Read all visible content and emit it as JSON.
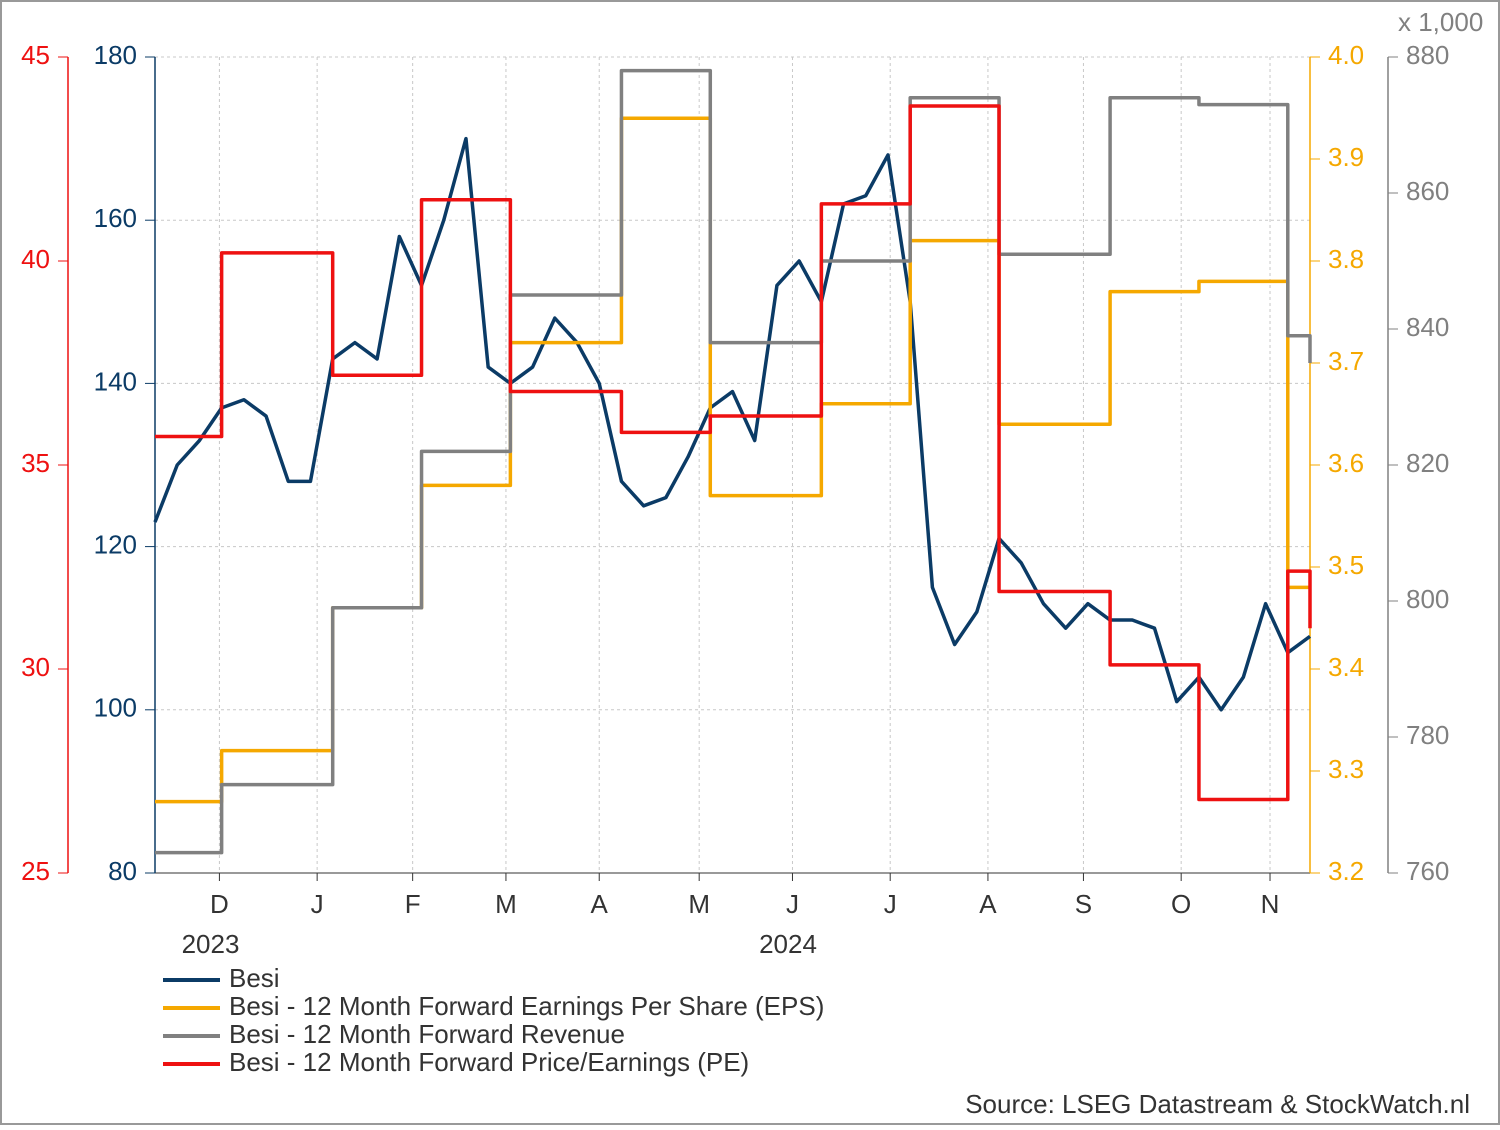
{
  "chart_data": {
    "type": "line",
    "x": [
      0,
      1,
      2,
      3,
      4,
      5,
      6,
      7,
      8,
      9,
      10,
      11,
      12,
      13,
      14,
      15,
      16,
      17,
      18,
      19,
      20,
      21,
      22,
      23,
      24,
      25,
      26,
      27,
      28,
      29,
      30,
      31,
      32,
      33,
      34,
      35,
      36,
      37,
      38,
      39,
      40,
      41,
      42,
      43,
      44,
      45,
      46,
      47,
      48,
      49,
      50,
      51,
      52
    ],
    "xlim": [
      0,
      52
    ],
    "xticks": [
      {
        "value": 2.9,
        "label": "D"
      },
      {
        "value": 7.3,
        "label": "J"
      },
      {
        "value": 11.6,
        "label": "F"
      },
      {
        "value": 15.8,
        "label": "M"
      },
      {
        "value": 20.0,
        "label": "A"
      },
      {
        "value": 24.5,
        "label": "M"
      },
      {
        "value": 28.7,
        "label": "J"
      },
      {
        "value": 33.1,
        "label": "J"
      },
      {
        "value": 37.5,
        "label": "A"
      },
      {
        "value": 41.8,
        "label": "S"
      },
      {
        "value": 46.2,
        "label": "O"
      },
      {
        "value": 50.2,
        "label": "N"
      }
    ],
    "x_groups": [
      {
        "value": 2.5,
        "label": "2023"
      },
      {
        "value": 28.5,
        "label": "2024"
      }
    ],
    "ylim": [
      80,
      180
    ],
    "yticks": [
      80,
      100,
      120,
      140,
      160,
      180
    ],
    "y2lim": [
      3.2,
      4.0
    ],
    "y2ticks": [
      3.2,
      3.3,
      3.4,
      3.5,
      3.6,
      3.7,
      3.8,
      3.9,
      {
        "value": 4.0,
        "label": "4.0"
      }
    ],
    "y3lim": [
      760,
      880
    ],
    "y3ticks": [
      760,
      780,
      800,
      820,
      840,
      860,
      880
    ],
    "y3_unit": "x 1,000",
    "y4lim": [
      25,
      45
    ],
    "y4ticks": [
      25,
      30,
      35,
      40,
      45
    ],
    "grid": true,
    "series": [
      {
        "name": "Besi",
        "color": "#0b3b66",
        "axis": "y",
        "step": false,
        "values": [
          123,
          130,
          133,
          137,
          138,
          136,
          128,
          128,
          143,
          145,
          143,
          158,
          152,
          160,
          170,
          142,
          140,
          142,
          148,
          145,
          140,
          128,
          125,
          126,
          131,
          137,
          139,
          133,
          152,
          155,
          150,
          162,
          163,
          168,
          150,
          115,
          108,
          112,
          121,
          118,
          113,
          110,
          113,
          111,
          111,
          110,
          101,
          104,
          100,
          104,
          113,
          107,
          109
        ]
      },
      {
        "name": "Besi - 12 Month Forward Earnings Per Share (EPS)",
        "color": "#f5a800",
        "axis": "y2",
        "step": true,
        "values": [
          3.27,
          3.27,
          3.27,
          3.32,
          3.32,
          3.32,
          3.32,
          3.32,
          3.46,
          3.46,
          3.46,
          3.46,
          3.58,
          3.58,
          3.58,
          3.58,
          3.72,
          3.72,
          3.72,
          3.72,
          3.72,
          3.94,
          3.94,
          3.94,
          3.94,
          3.57,
          3.57,
          3.57,
          3.57,
          3.57,
          3.66,
          3.66,
          3.66,
          3.66,
          3.82,
          3.82,
          3.82,
          3.82,
          3.64,
          3.64,
          3.64,
          3.64,
          3.64,
          3.77,
          3.77,
          3.77,
          3.77,
          3.78,
          3.78,
          3.78,
          3.78,
          3.48,
          3.48
        ]
      },
      {
        "name": "Besi - 12 Month Forward Revenue",
        "color": "#808080",
        "axis": "y3",
        "step": true,
        "values": [
          763,
          763,
          763,
          773,
          773,
          773,
          773,
          773,
          799,
          799,
          799,
          799,
          822,
          822,
          822,
          822,
          845,
          845,
          845,
          845,
          845,
          878,
          878,
          878,
          878,
          838,
          838,
          838,
          838,
          838,
          850,
          850,
          850,
          850,
          874,
          874,
          874,
          874,
          851,
          851,
          851,
          851,
          851,
          874,
          874,
          874,
          874,
          873,
          873,
          873,
          873,
          839,
          835
        ]
      },
      {
        "name": "Besi - 12 Month Forward Price/Earnings (PE)",
        "color": "#ee1111",
        "axis": "y4",
        "step": true,
        "values": [
          35.7,
          35.7,
          35.7,
          40.2,
          40.2,
          40.2,
          40.2,
          40.2,
          37.2,
          37.2,
          37.2,
          37.2,
          41.5,
          41.5,
          41.5,
          41.5,
          36.8,
          36.8,
          36.8,
          36.8,
          36.8,
          35.8,
          35.8,
          35.8,
          35.8,
          36.2,
          36.2,
          36.2,
          36.2,
          36.2,
          41.4,
          41.4,
          41.4,
          41.4,
          43.8,
          43.8,
          43.8,
          43.8,
          31.9,
          31.9,
          31.9,
          31.9,
          31.9,
          30.1,
          30.1,
          30.1,
          30.1,
          26.8,
          26.8,
          26.8,
          26.8,
          32.4,
          31.0
        ]
      }
    ],
    "source": "Source: LSEG Datastream & StockWatch.nl"
  }
}
